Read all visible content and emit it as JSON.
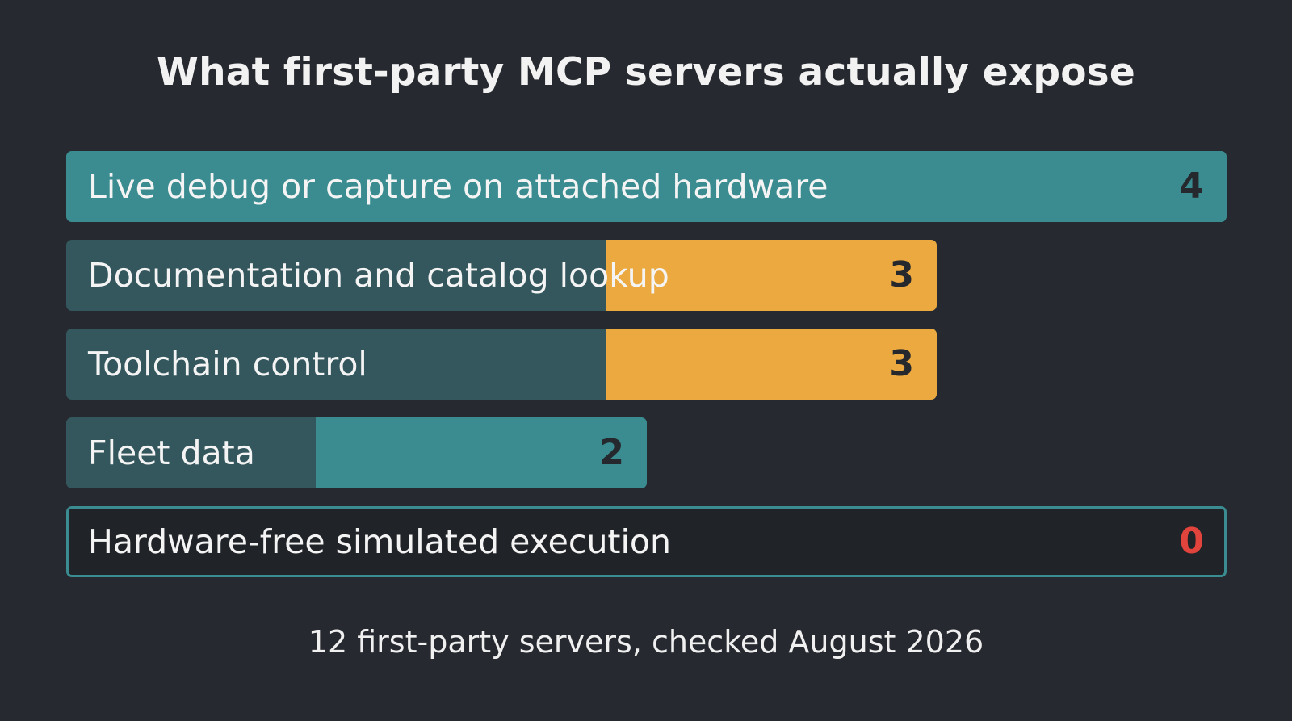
{
  "title": "What first-party MCP servers actually expose",
  "footnote": "12 first-party servers, checked August 2026",
  "colors": {
    "background": "#26292f",
    "teal": "#3a8c90",
    "amber": "#eba93f",
    "track": "#34575d",
    "zero_value": "#e0443c",
    "value_text": "#25282d"
  },
  "chart_data": {
    "type": "bar",
    "orientation": "horizontal",
    "title": "What first-party MCP servers actually expose",
    "categories": [
      "Live debug or capture on attached hardware",
      "Documentation and catalog lookup",
      "Toolchain control",
      "Fleet data",
      "Hardware-free simulated execution"
    ],
    "values": [
      4,
      3,
      3,
      2,
      0
    ],
    "bar_colors": [
      "#3a8c90",
      "#eba93f",
      "#eba93f",
      "#3a8c90",
      "#3a8c90"
    ],
    "xlim": [
      0,
      4
    ],
    "grid": false,
    "legend": "none",
    "note": "12 first-party servers, checked August 2026"
  }
}
